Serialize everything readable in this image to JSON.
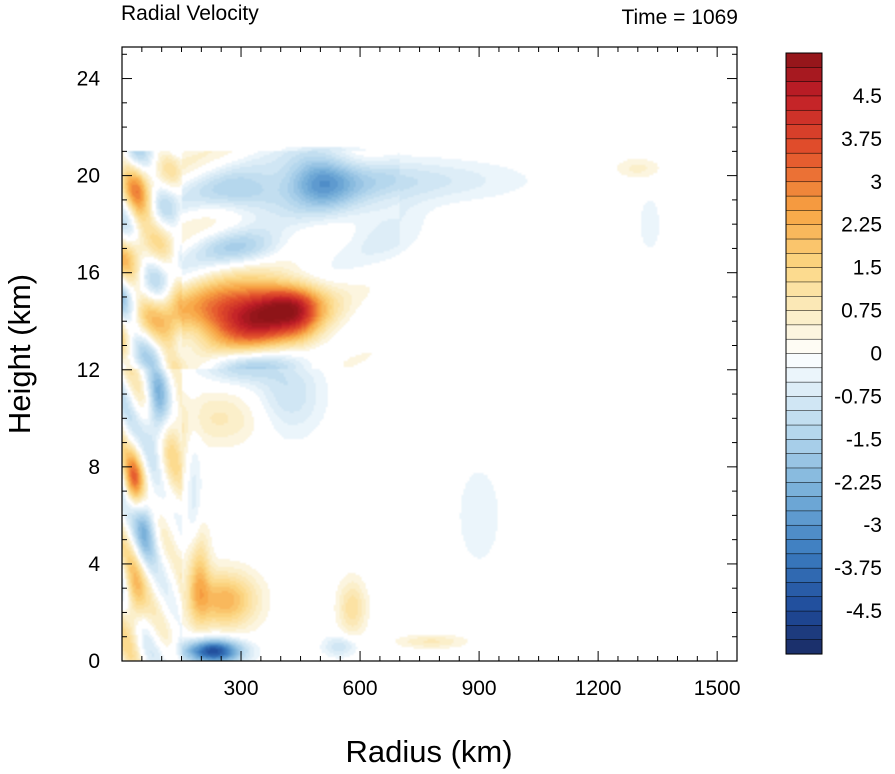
{
  "chart_data": {
    "type": "heatmap",
    "title": "Radial Velocity",
    "subtitle": "Time = 1069",
    "xlabel": "Radius (km)",
    "ylabel": "Height (km)",
    "xlim": [
      0,
      1550
    ],
    "ylim": [
      0,
      25.3
    ],
    "x_ticks": [
      300,
      600,
      900,
      1200,
      1500
    ],
    "y_ticks": [
      0,
      4,
      8,
      12,
      16,
      20,
      24
    ],
    "x_tick_labels": [
      "300",
      "600",
      "900",
      "1200",
      "1500"
    ],
    "y_tick_labels": [
      "0",
      "4",
      "8",
      "12",
      "16",
      "20",
      "24"
    ],
    "colorbar": {
      "min": -5.25,
      "max": 5.25,
      "step": 0.25,
      "tick_values": [
        4.5,
        3.75,
        3,
        2.25,
        1.5,
        0.75,
        0,
        -0.75,
        -1.5,
        -2.25,
        -3,
        -3.75,
        -4.5
      ],
      "tick_labels": [
        "4.5",
        "3.75",
        "3",
        "2.25",
        "1.5",
        "0.75",
        "0",
        "-0.75",
        "-1.5",
        "-2.25",
        "-3",
        "-3.75",
        "-4.5"
      ],
      "color_stops": [
        {
          "v": -5.25,
          "c": "#1a2b63"
        },
        {
          "v": -4.5,
          "c": "#1f4a99"
        },
        {
          "v": -3.5,
          "c": "#3a7bbf"
        },
        {
          "v": -2.5,
          "c": "#73acd8"
        },
        {
          "v": -1.5,
          "c": "#aed3eb"
        },
        {
          "v": -0.5,
          "c": "#e4f1f9"
        },
        {
          "v": 0,
          "c": "#ffffff"
        },
        {
          "v": 0.5,
          "c": "#fbf2d4"
        },
        {
          "v": 1.5,
          "c": "#fcd885"
        },
        {
          "v": 2.5,
          "c": "#f7a443"
        },
        {
          "v": 3.5,
          "c": "#e4532c"
        },
        {
          "v": 4.5,
          "c": "#c01e27"
        },
        {
          "v": 5.25,
          "c": "#8e1418"
        }
      ]
    },
    "features": [
      {
        "r": 320,
        "h": 14.2,
        "sr": 110,
        "sh": 0.9,
        "v": 5.0
      },
      {
        "r": 420,
        "h": 14.8,
        "sr": 60,
        "sh": 0.6,
        "v": 2.0
      },
      {
        "r": 260,
        "h": 2.5,
        "sr": 55,
        "sh": 0.8,
        "v": 2.2
      },
      {
        "r": 190,
        "h": 3.5,
        "sr": 20,
        "sh": 1.4,
        "v": 2.0
      },
      {
        "r": 230,
        "h": 0.4,
        "sr": 50,
        "sh": 0.35,
        "v": -4.5
      },
      {
        "r": 30,
        "h": 7.5,
        "sr": 18,
        "sh": 0.8,
        "v": 2.5
      },
      {
        "r": 30,
        "h": 2.5,
        "sr": 20,
        "sh": 1.2,
        "v": 1.8
      },
      {
        "r": 40,
        "h": 18.5,
        "sr": 25,
        "sh": 1.2,
        "v": 1.8
      },
      {
        "r": 60,
        "h": 5.5,
        "sr": 20,
        "sh": 1.0,
        "v": -1.8
      },
      {
        "r": 90,
        "h": 10.5,
        "sr": 20,
        "sh": 1.2,
        "v": -2.2
      },
      {
        "r": 120,
        "h": 13.5,
        "sr": 25,
        "sh": 0.8,
        "v": 1.2
      },
      {
        "r": 130,
        "h": 8.5,
        "sr": 25,
        "sh": 1.5,
        "v": 1.0
      },
      {
        "r": 500,
        "h": 19.8,
        "sr": 60,
        "sh": 0.8,
        "v": -2.5
      },
      {
        "r": 320,
        "h": 19.2,
        "sr": 80,
        "sh": 0.6,
        "v": -1.5
      },
      {
        "r": 700,
        "h": 19.8,
        "sr": 200,
        "sh": 0.6,
        "v": -0.9
      },
      {
        "r": 650,
        "h": 18.2,
        "sr": 80,
        "sh": 1.2,
        "v": -0.6
      },
      {
        "r": 300,
        "h": 17.0,
        "sr": 80,
        "sh": 0.5,
        "v": -1.2
      },
      {
        "r": 300,
        "h": 12.2,
        "sr": 70,
        "sh": 0.5,
        "v": -1.5
      },
      {
        "r": 420,
        "h": 11.0,
        "sr": 60,
        "sh": 1.2,
        "v": -1.0
      },
      {
        "r": 250,
        "h": 10.0,
        "sr": 80,
        "sh": 0.8,
        "v": 0.8
      },
      {
        "r": 580,
        "h": 2.2,
        "sr": 25,
        "sh": 0.8,
        "v": 1.2
      },
      {
        "r": 1300,
        "h": 20.3,
        "sr": 40,
        "sh": 0.3,
        "v": 0.6
      },
      {
        "r": 1330,
        "h": 18.0,
        "sr": 20,
        "sh": 0.8,
        "v": -0.5
      },
      {
        "r": 900,
        "h": 6.0,
        "sr": 40,
        "sh": 1.5,
        "v": -0.5
      },
      {
        "r": 780,
        "h": 0.8,
        "sr": 60,
        "sh": 0.2,
        "v": 0.8
      },
      {
        "r": 550,
        "h": 0.6,
        "sr": 30,
        "sh": 0.3,
        "v": -1.0
      },
      {
        "r": 450,
        "h": 14.0,
        "sr": 35,
        "sh": 0.8,
        "v": 0.8
      },
      {
        "r": 180,
        "h": 6.0,
        "sr": 15,
        "sh": 2.5,
        "v": -0.8
      }
    ]
  }
}
